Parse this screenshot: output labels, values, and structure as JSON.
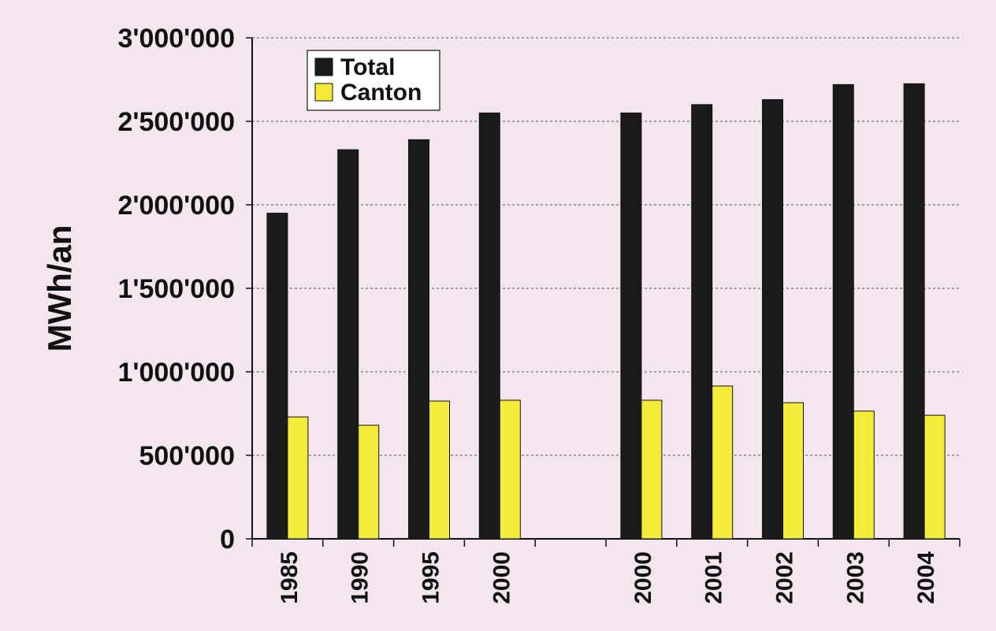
{
  "chart_data": {
    "type": "bar",
    "ylabel": "MWh/an",
    "ylim": [
      0,
      3000000
    ],
    "y_ticks": [
      0,
      500000,
      1000000,
      1500000,
      2000000,
      2500000,
      3000000
    ],
    "y_tick_labels": [
      "0",
      "500'000",
      "1'000'000",
      "1'500'000",
      "2'000'000",
      "2'500'000",
      "3'000'000"
    ],
    "categories": [
      "1985",
      "1990",
      "1995",
      "2000",
      "",
      "2000",
      "2001",
      "2002",
      "2003",
      "2004"
    ],
    "series": [
      {
        "name": "Total",
        "color": "#1a1a1a",
        "values": [
          1950000,
          2330000,
          2390000,
          2550000,
          null,
          2550000,
          2600000,
          2630000,
          2720000,
          2725000
        ]
      },
      {
        "name": "Canton",
        "color": "#f5ec3a",
        "values": [
          730000,
          680000,
          825000,
          830000,
          null,
          830000,
          915000,
          815000,
          765000,
          740000
        ]
      }
    ],
    "grid": true,
    "legend_position": "top-left"
  },
  "colors": {
    "background": "#f3e6ee",
    "gridline": "#555555",
    "axis": "#111111"
  }
}
